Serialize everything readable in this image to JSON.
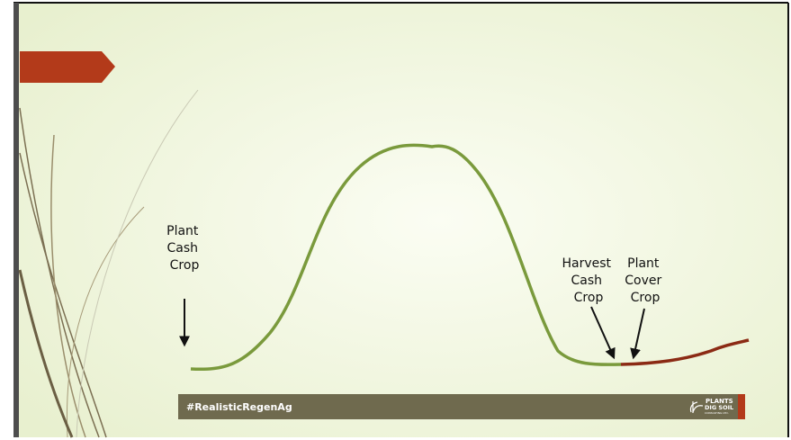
{
  "labels": [
    {
      "lines": [
        "Plant",
        "Cash",
        "Crop"
      ]
    },
    {
      "lines": [
        "Harvest",
        "Cash",
        "Crop"
      ]
    },
    {
      "lines": [
        "Plant",
        "Cover",
        "Crop"
      ]
    }
  ],
  "footer": {
    "hashtag": "#RealisticRegenAg",
    "logo": [
      "PLANTS",
      "DIG SOIL",
      "CONSULTING LTD."
    ]
  }
}
